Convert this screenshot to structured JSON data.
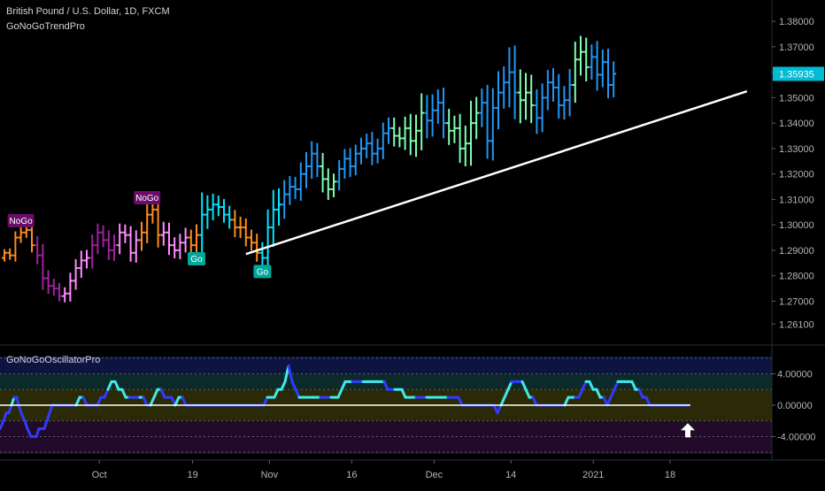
{
  "header": {
    "symbol_line": "British Pound / U.S. Dollar, 1D, FXCM",
    "indicator": "GoNoGoTrendPro",
    "oscillator_title": "GoNoGoOscillatorPro"
  },
  "colors": {
    "bg": "#000000",
    "grid": "#1e222d",
    "bright_blue": "#2196f3",
    "aqua": "#00e5ff",
    "light_green": "#7fffb0",
    "pink": "#ff8cff",
    "purple": "#a020a0",
    "orange": "#ff8c1a",
    "trendline": "#ffffff",
    "osc_line_blue": "#2f3bff",
    "osc_line_aqua": "#40e8e8",
    "zone_blue": "#0d1440",
    "zone_teal": "#0c2a2a",
    "zone_olive": "#2a2a06",
    "zone_purple": "#220a2a",
    "last_price_bg": "#00bcd4"
  },
  "chart_data": [
    {
      "type": "ohlc",
      "title": "British Pound / U.S. Dollar, 1D, FXCM",
      "ylim": [
        1.257,
        1.387
      ],
      "yticks": [
        "1.38000",
        "1.37000",
        "1.36000",
        "1.35000",
        "1.34000",
        "1.33000",
        "1.32000",
        "1.31000",
        "1.30000",
        "1.29000",
        "1.28000",
        "1.27000",
        "1.26100"
      ],
      "ytick_values": [
        1.38,
        1.37,
        1.36,
        1.35,
        1.34,
        1.33,
        1.32,
        1.31,
        1.3,
        1.29,
        1.28,
        1.27,
        1.261
      ],
      "last_price_label": "1.35935",
      "last_price": 1.35935,
      "xticks": [
        "Oct",
        "19",
        "Nov",
        "16",
        "Dec",
        "14",
        "2021",
        "18"
      ],
      "xtick_index": [
        16,
        33,
        47,
        62,
        77,
        91,
        106,
        120
      ],
      "bar_count": 112,
      "labels": [
        {
          "text": "NoGo",
          "bar": 3,
          "price": 1.3015,
          "kind": "nogo"
        },
        {
          "text": "NoGo",
          "bar": 26,
          "price": 1.3105,
          "kind": "nogo"
        },
        {
          "text": "Go",
          "bar": 35,
          "price": 1.2865,
          "kind": "go"
        },
        {
          "text": "Go",
          "bar": 47,
          "price": 1.2815,
          "kind": "go"
        }
      ],
      "trendline": {
        "from": {
          "bar": 44,
          "price": 1.2885
        },
        "to": {
          "bar": 124,
          "price": 1.3525
        }
      },
      "color_runs": [
        {
          "from": 0,
          "to": 5,
          "color": "orange"
        },
        {
          "from": 6,
          "to": 10,
          "color": "purple"
        },
        {
          "from": 11,
          "to": 15,
          "color": "pink"
        },
        {
          "from": 16,
          "to": 20,
          "color": "purple"
        },
        {
          "from": 21,
          "to": 24,
          "color": "pink"
        },
        {
          "from": 25,
          "to": 28,
          "color": "orange"
        },
        {
          "from": 29,
          "to": 33,
          "color": "pink"
        },
        {
          "from": 34,
          "to": 35,
          "color": "orange"
        },
        {
          "from": 36,
          "to": 41,
          "color": "aqua"
        },
        {
          "from": 42,
          "to": 46,
          "color": "orange"
        },
        {
          "from": 47,
          "to": 50,
          "color": "aqua"
        },
        {
          "from": 51,
          "to": 57,
          "color": "bright_blue"
        },
        {
          "from": 58,
          "to": 60,
          "color": "light_green"
        },
        {
          "from": 61,
          "to": 70,
          "color": "bright_blue"
        },
        {
          "from": 71,
          "to": 76,
          "color": "light_green"
        },
        {
          "from": 77,
          "to": 80,
          "color": "bright_blue"
        },
        {
          "from": 81,
          "to": 86,
          "color": "light_green"
        },
        {
          "from": 87,
          "to": 93,
          "color": "bright_blue"
        },
        {
          "from": 94,
          "to": 96,
          "color": "light_green"
        },
        {
          "from": 97,
          "to": 103,
          "color": "bright_blue"
        },
        {
          "from": 104,
          "to": 106,
          "color": "light_green"
        },
        {
          "from": 107,
          "to": 111,
          "color": "bright_blue"
        }
      ],
      "closes": [
        1.289,
        1.288,
        1.295,
        1.297,
        1.298,
        1.292,
        1.288,
        1.279,
        1.276,
        1.275,
        1.272,
        1.273,
        1.278,
        1.283,
        1.286,
        1.287,
        1.292,
        1.297,
        1.294,
        1.29,
        1.292,
        1.297,
        1.296,
        1.289,
        1.294,
        1.297,
        1.304,
        1.306,
        1.296,
        1.297,
        1.292,
        1.29,
        1.293,
        1.295,
        1.292,
        1.296,
        1.304,
        1.306,
        1.308,
        1.307,
        1.304,
        1.302,
        1.299,
        1.299,
        1.295,
        1.293,
        1.289,
        1.287,
        1.299,
        1.306,
        1.308,
        1.312,
        1.315,
        1.314,
        1.32,
        1.323,
        1.328,
        1.323,
        1.318,
        1.314,
        1.317,
        1.322,
        1.326,
        1.323,
        1.328,
        1.33,
        1.332,
        1.328,
        1.33,
        1.336,
        1.338,
        1.335,
        1.334,
        1.338,
        1.333,
        1.337,
        1.344,
        1.341,
        1.345,
        1.348,
        1.34,
        1.337,
        1.338,
        1.33,
        1.332,
        1.34,
        1.344,
        1.348,
        1.333,
        1.346,
        1.352,
        1.356,
        1.36,
        1.352,
        1.349,
        1.352,
        1.347,
        1.342,
        1.35,
        1.356,
        1.354,
        1.347,
        1.349,
        1.355,
        1.365,
        1.368,
        1.362,
        1.366,
        1.359,
        1.364,
        1.355,
        1.3594
      ],
      "ranges": [
        0.004,
        0.005,
        0.007,
        0.006,
        0.006,
        0.008,
        0.01,
        0.013,
        0.009,
        0.008,
        0.006,
        0.007,
        0.009,
        0.01,
        0.011,
        0.009,
        0.012,
        0.01,
        0.008,
        0.011,
        0.012,
        0.01,
        0.009,
        0.01,
        0.011,
        0.012,
        0.012,
        0.01,
        0.014,
        0.012,
        0.011,
        0.009,
        0.01,
        0.011,
        0.009,
        0.012,
        0.025,
        0.016,
        0.012,
        0.01,
        0.009,
        0.01,
        0.011,
        0.012,
        0.01,
        0.009,
        0.01,
        0.012,
        0.02,
        0.022,
        0.018,
        0.016,
        0.012,
        0.011,
        0.013,
        0.016,
        0.014,
        0.012,
        0.015,
        0.012,
        0.009,
        0.01,
        0.011,
        0.012,
        0.01,
        0.012,
        0.011,
        0.013,
        0.011,
        0.012,
        0.012,
        0.012,
        0.01,
        0.013,
        0.016,
        0.018,
        0.022,
        0.02,
        0.018,
        0.015,
        0.017,
        0.016,
        0.014,
        0.016,
        0.02,
        0.025,
        0.018,
        0.016,
        0.02,
        0.022,
        0.024,
        0.018,
        0.028,
        0.03,
        0.026,
        0.022,
        0.02,
        0.018,
        0.016,
        0.014,
        0.016,
        0.015,
        0.016,
        0.018,
        0.02,
        0.018,
        0.016,
        0.014,
        0.018,
        0.014,
        0.015,
        0.014
      ]
    },
    {
      "type": "line",
      "title": "GoNoGoOscillatorPro",
      "ylim": [
        -6.2,
        6.2
      ],
      "yticks": [
        "4.00000",
        "0.00000",
        "-4.00000"
      ],
      "ytick_values": [
        4,
        0,
        -4
      ],
      "zones": [
        {
          "from": 4,
          "to": 6.2,
          "color": "zone_blue"
        },
        {
          "from": 2,
          "to": 4,
          "color": "zone_teal"
        },
        {
          "from": -2,
          "to": 2,
          "color": "zone_olive"
        },
        {
          "from": -6.2,
          "to": -2,
          "color": "zone_purple"
        }
      ],
      "dotted_levels": [
        6,
        4,
        2,
        -2,
        -4,
        -6
      ],
      "x_points": [
        0,
        4,
        7,
        10,
        13,
        16,
        19,
        21,
        24,
        28,
        31,
        35,
        38,
        41,
        44,
        47,
        50,
        53,
        56,
        59,
        62,
        66,
        70,
        74,
        78,
        82,
        86,
        90,
        94,
        98,
        102,
        106,
        110,
        114,
        118,
        122,
        126,
        130,
        134,
        138,
        142,
        146,
        150,
        154,
        158,
        162,
        166,
        170,
        174,
        178,
        182,
        186,
        190,
        194,
        198,
        202,
        206,
        210,
        214,
        218,
        222,
        226,
        230,
        234,
        238,
        242,
        246,
        250,
        254,
        258,
        262,
        266,
        270,
        274,
        278,
        282,
        286,
        290,
        294,
        298,
        302,
        306,
        310,
        314,
        318,
        322,
        326,
        330,
        334,
        338,
        342,
        346,
        350,
        354,
        358,
        362,
        366,
        370,
        374,
        378,
        382,
        386,
        390,
        394,
        398,
        402,
        406,
        410,
        414,
        418,
        422,
        426,
        430,
        434,
        438,
        442,
        446,
        450,
        454,
        458,
        462,
        466,
        470,
        474,
        478,
        482,
        486,
        490,
        494,
        498,
        502,
        506,
        510,
        514,
        518,
        522,
        526,
        530,
        534,
        538,
        542,
        546,
        550,
        554,
        558,
        562,
        566,
        570,
        574,
        578,
        582,
        586,
        590,
        594,
        598,
        602,
        606,
        610,
        614,
        618,
        622,
        626,
        630,
        634,
        638,
        642,
        646,
        650,
        654,
        658,
        662,
        666,
        670,
        674,
        678,
        682,
        686,
        690,
        694,
        698,
        702,
        706,
        710,
        714,
        718,
        722,
        726,
        730,
        734,
        738,
        742,
        746,
        750,
        754,
        758,
        762,
        766,
        770,
        774,
        778
      ],
      "values": [
        -3,
        -2,
        -1,
        -1,
        0,
        1,
        1,
        0,
        -1,
        -2,
        -3,
        -4,
        -4,
        -4,
        -3,
        -3,
        -3,
        -2,
        -1,
        0,
        0,
        0,
        0,
        0,
        0,
        0,
        0,
        1,
        1,
        0,
        0,
        0,
        0,
        1,
        1,
        2,
        3,
        3,
        2,
        2,
        1,
        1,
        1,
        1,
        1,
        1,
        0,
        0,
        1,
        2,
        2,
        1,
        1,
        1,
        0,
        1,
        1,
        0,
        0,
        0,
        0,
        0,
        0,
        0,
        0,
        0,
        0,
        0,
        0,
        0,
        0,
        0,
        0,
        0,
        0,
        0,
        0,
        0,
        0,
        0,
        1,
        1,
        1,
        2,
        2,
        3,
        5,
        3,
        2,
        1,
        1,
        1,
        1,
        1,
        1,
        1,
        1,
        1,
        1,
        1,
        1,
        2,
        3,
        3,
        3,
        3,
        3,
        3,
        3,
        3,
        3,
        3,
        3,
        3,
        2,
        2,
        2,
        2,
        2,
        1,
        1,
        1,
        1,
        1,
        1,
        1,
        1,
        1,
        1,
        1,
        1,
        1,
        1,
        1,
        1,
        0,
        0,
        0,
        0,
        0,
        0,
        0,
        0,
        0,
        0,
        -1,
        0,
        1,
        2,
        3,
        3,
        3,
        3,
        2,
        1,
        1,
        0,
        0,
        0,
        0,
        0,
        0,
        0,
        0,
        0,
        1,
        1,
        1,
        1,
        2,
        3,
        3,
        2,
        2,
        1,
        1,
        0,
        1,
        2,
        3,
        3,
        3,
        3,
        3,
        2,
        2,
        1,
        1,
        0,
        0,
        0,
        0,
        0,
        0,
        0,
        0,
        0,
        0,
        0,
        0
      ],
      "arrow_label": "up-arrow-icon"
    }
  ]
}
